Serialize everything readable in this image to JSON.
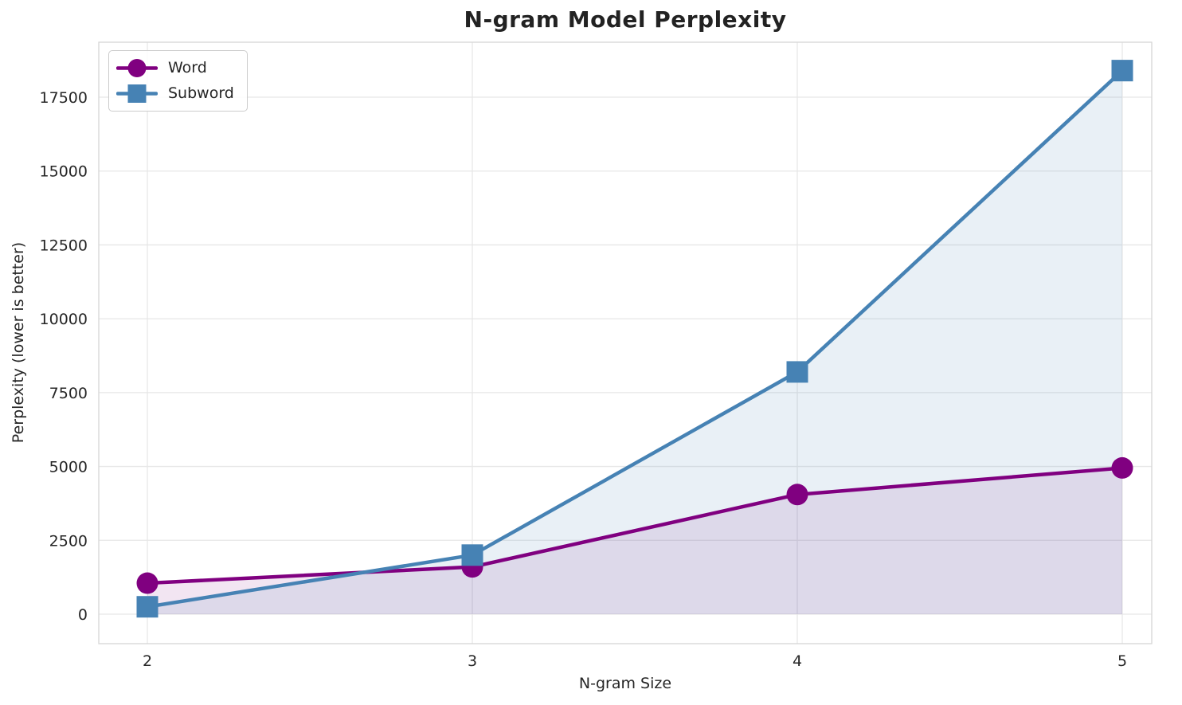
{
  "chart_data": {
    "type": "line",
    "title": "N-gram Model Perplexity",
    "xlabel": "N-gram Size",
    "ylabel": "Perplexity (lower is better)",
    "x": [
      2,
      3,
      4,
      5
    ],
    "series": [
      {
        "name": "Word",
        "values": [
          1050,
          1600,
          4050,
          4950
        ],
        "color": "#800080",
        "fill_color": "rgba(128,0,128,0.10)",
        "marker": "circle"
      },
      {
        "name": "Subword",
        "values": [
          250,
          2000,
          8200,
          18400
        ],
        "color": "#4682B4",
        "fill_color": "rgba(70,130,180,0.12)",
        "marker": "square"
      }
    ],
    "xticks": [
      "2",
      "3",
      "4",
      "5"
    ],
    "xtick_values": [
      2,
      3,
      4,
      5
    ],
    "yticks": [
      "0",
      "2500",
      "5000",
      "7500",
      "10000",
      "12500",
      "15000",
      "17500"
    ],
    "ytick_values": [
      0,
      2500,
      5000,
      7500,
      10000,
      12500,
      15000,
      17500
    ],
    "xlim": [
      1.85,
      5.1
    ],
    "ylim": [
      -1000,
      19360
    ],
    "grid": true,
    "area_fill_baseline": 0,
    "legend_position": "upper left",
    "grid_color": "#e7e7e7",
    "spine_color": "#d6d6d6",
    "text_color": "#262626",
    "background_color": "#ffffff"
  }
}
